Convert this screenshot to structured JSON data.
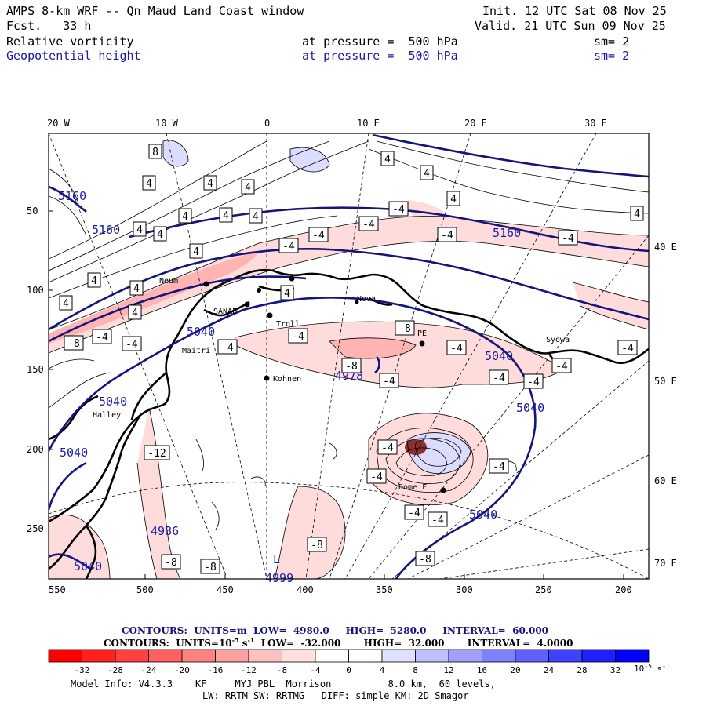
{
  "header": {
    "title": "AMPS 8-km WRF -- Qn Maud Land Coast window",
    "fcst": "Fcst.   33 h",
    "init": "Init. 12 UTC Sat 08 Nov 25",
    "valid": "Valid. 21 UTC Sun 09 Nov 25",
    "field1_name": "Relative vorticity",
    "field1_level": "at pressure =  500 hPa",
    "field1_sm": "sm= 2",
    "field2_name": "Geopotential height",
    "field2_level": "at pressure =  500 hPa",
    "field2_sm": "sm= 2"
  },
  "map": {
    "lon_labels_top": [
      "20 W",
      "10 W",
      "0",
      "10 E",
      "20 E",
      "30 E"
    ],
    "lon_labels_right": [
      "40 E",
      "50 E",
      "60 E",
      "70 E"
    ],
    "y_ticks": [
      "50",
      "100",
      "150",
      "200",
      "250"
    ],
    "x_ticks": [
      "550",
      "500",
      "450",
      "400",
      "350",
      "300",
      "250",
      "200"
    ],
    "stations": [
      "Neum",
      "SANAE",
      "Troll",
      "Maitri",
      "Nova",
      "PE",
      "Syowa",
      "Halley",
      "Kohnen",
      "Dome F"
    ],
    "lows": [
      {
        "symbol": "L",
        "value": "4978"
      },
      {
        "symbol": "L",
        "value": "4999"
      }
    ],
    "height_labels": [
      "5160",
      "5160",
      "5160",
      "5040",
      "5040",
      "5040",
      "5040",
      "5040",
      "5040",
      "4986"
    ],
    "vort_labels": [
      "8",
      "4",
      "4",
      "4",
      "4",
      "4",
      "4",
      "4",
      "4",
      "4",
      "4",
      "4",
      "4",
      "4",
      "4",
      "4",
      "4",
      "4",
      "-4",
      "-4",
      "-4",
      "-4",
      "-4",
      "-4",
      "-4",
      "-4",
      "-4",
      "-4",
      "-4",
      "-4",
      "-4",
      "-4",
      "-4",
      "-4",
      "-4",
      "-4",
      "-4",
      "-4",
      "-4",
      "-8",
      "-8",
      "-8",
      "-8",
      "-8",
      "-8",
      "-8",
      "-12",
      "4"
    ]
  },
  "contours": {
    "line1_label": "CONTOURS:  UNITS=m  LOW=  4980.0     HIGH=  5280.0     INTERVAL=  60.000",
    "line2_label": "CONTOURS:  UNITS=10",
    "line2_exp": "-5",
    "line2_rest": " s",
    "line2_exp2": "-1",
    "line2_tail": "  LOW=  -32.000       HIGH=  32.000       INTERVAL=  4.0000"
  },
  "colorbar": {
    "ticks": [
      "-32",
      "-28",
      "-24",
      "-20",
      "-16",
      "-12",
      "-8",
      "-4",
      "0",
      "4",
      "8",
      "12",
      "16",
      "20",
      "24",
      "28",
      "32"
    ],
    "units": "10",
    "units_exp": "-5",
    "units_s": " s",
    "units_exp2": "-1",
    "colors": [
      "#ff0000",
      "#ff2020",
      "#ff4040",
      "#ff6060",
      "#ff8080",
      "#ffa0a0",
      "#ffc0c0",
      "#ffe0e0",
      "#ffffff",
      "#ffffff",
      "#e0e0ff",
      "#c0c0ff",
      "#a0a0ff",
      "#8080ff",
      "#6060ff",
      "#4040ff",
      "#2020ff",
      "#0000ff"
    ]
  },
  "footer": {
    "line1": "Model Info: V4.3.3    KF     MYJ PBL  Morrison          8.0 km,  60 levels,",
    "line2": "LW: RRTM SW: RRTMG   DIFF: simple KM: 2D Smagor"
  }
}
